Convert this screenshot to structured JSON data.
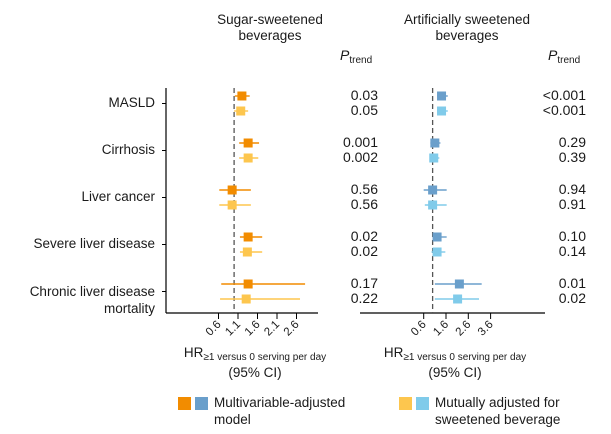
{
  "chart_data": [
    {
      "type": "forest",
      "panel": "left",
      "title": "Sugar-sweetened beverages",
      "xlabel": "HR≥1 versus 0 serving per day (95% CI)",
      "xticks": [
        0.6,
        1.1,
        1.6,
        2.1,
        2.6
      ],
      "xlim": [
        -0.2,
        2.8
      ],
      "reference_line": 1.0,
      "ptrend_header": "P trend",
      "categories": [
        "MASLD",
        "Cirrhosis",
        "Liver cancer",
        "Severe liver disease",
        "Chronic liver disease mortality"
      ],
      "series": [
        {
          "name": "Multivariable-adjusted model",
          "color": "#F28C00",
          "hr": [
            1.2,
            1.36,
            0.95,
            1.36,
            1.36
          ],
          "lo": [
            1.02,
            1.13,
            0.62,
            1.15,
            0.67
          ],
          "hi": [
            1.4,
            1.64,
            1.43,
            1.72,
            2.82
          ],
          "p_trend": [
            "0.03",
            "0.001",
            "0.56",
            "0.02",
            "0.17"
          ]
        },
        {
          "name": "Mutually adjusted for sweetened beverage",
          "color": "#FDC64E",
          "hr": [
            1.17,
            1.36,
            0.95,
            1.34,
            1.31
          ],
          "lo": [
            1.0,
            1.13,
            0.62,
            1.15,
            0.64
          ],
          "hi": [
            1.36,
            1.62,
            1.43,
            1.72,
            2.69
          ],
          "p_trend": [
            "0.05",
            "0.002",
            "0.56",
            "0.02",
            "0.22"
          ]
        }
      ]
    },
    {
      "type": "forest",
      "panel": "right",
      "title": "Artificially sweetened beverages",
      "xlabel": "HR≥1 versus 0 serving per day (95% CI)",
      "xticks": [
        0.6,
        1.6,
        2.6,
        3.6
      ],
      "xlim": [
        -2.6,
        5.6
      ],
      "reference_line": 1.0,
      "ptrend_header": "P trend",
      "categories": [
        "MASLD",
        "Cirrhosis",
        "Liver cancer",
        "Severe liver disease",
        "Chronic liver disease mortality"
      ],
      "series": [
        {
          "name": "Multivariable-adjusted model",
          "color": "#6A9FCB",
          "hr": [
            1.4,
            1.1,
            1.0,
            1.2,
            2.2
          ],
          "lo": [
            1.2,
            0.9,
            0.6,
            1.0,
            1.1
          ],
          "hi": [
            1.68,
            1.35,
            1.63,
            1.63,
            3.2
          ],
          "p_trend": [
            "<0.001",
            "0.29",
            "0.94",
            "0.10",
            "0.01"
          ]
        },
        {
          "name": "Mutually adjusted for sweetened beverage",
          "color": "#80CBEA",
          "hr": [
            1.4,
            1.05,
            1.0,
            1.2,
            2.12
          ],
          "lo": [
            1.2,
            0.88,
            0.65,
            0.95,
            1.1
          ],
          "hi": [
            1.68,
            1.3,
            1.63,
            1.57,
            3.08
          ],
          "p_trend": [
            "<0.001",
            "0.39",
            "0.91",
            "0.14",
            "0.02"
          ]
        }
      ]
    }
  ],
  "labels": {
    "left_title_line1": "Sugar-sweetened",
    "left_title_line2": "beverages",
    "right_title_line1": "Artificially sweetened",
    "right_title_line2": "beverages",
    "ptrend_P": "P",
    "ptrend_sub": "trend",
    "categories": [
      "MASLD",
      "Cirrhosis",
      "Liver cancer",
      "Severe liver disease",
      "Chronic liver disease",
      "mortality"
    ],
    "xlabel_HR": "HR",
    "xlabel_sub": "≥1 versus 0 serving per day",
    "xlabel_ci": "(95% CI)",
    "left_ticks": [
      "0.6",
      "1.1",
      "1.6",
      "2.1",
      "2.6"
    ],
    "right_ticks": [
      "0.6",
      "1.6",
      "2.6",
      "3.6"
    ]
  },
  "legend": {
    "item1_line1": "Multivariable-adjusted",
    "item1_line2": "model",
    "item1_colors": [
      "#F28C00",
      "#6A9FCB"
    ],
    "item2_line1": "Mutually adjusted for",
    "item2_line2": "sweetened beverage",
    "item2_colors": [
      "#FDC64E",
      "#80CBEA"
    ]
  }
}
